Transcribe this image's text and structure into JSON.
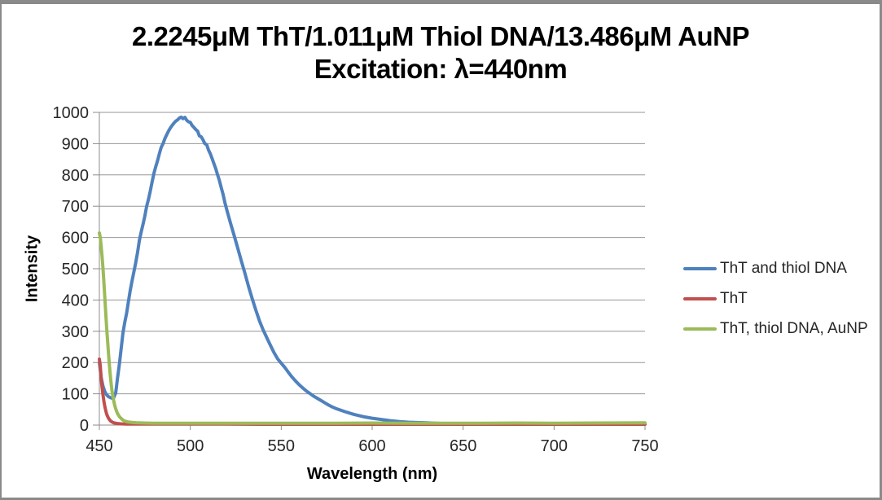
{
  "window": {
    "background": "#ffffff",
    "border_color": "#8a8a8a"
  },
  "title": {
    "line1": "2.2245μM ThT/1.011μM Thiol DNA/13.486μM AuNP",
    "line2": "Excitation: λ=440nm"
  },
  "chart_data": {
    "type": "line",
    "title": "2.2245μM ThT/1.011μM Thiol DNA/13.486μM AuNP Excitation: λ=440nm",
    "xlabel": "Wavelength (nm)",
    "ylabel": "Intensity",
    "xlim": [
      450,
      750
    ],
    "ylim": [
      0,
      1000
    ],
    "x_ticks": [
      450,
      500,
      550,
      600,
      650,
      700,
      750
    ],
    "y_ticks": [
      0,
      100,
      200,
      300,
      400,
      500,
      600,
      700,
      800,
      900,
      1000
    ],
    "grid": "horizontal",
    "legend_position": "right",
    "gridline_color": "#969696",
    "axis_color": "#8c8c8c",
    "tick_label_color": "#262626",
    "series": [
      {
        "name": "ThT and thiol DNA",
        "color": "#4F81BD",
        "peak": {
          "wavelength": 496,
          "intensity": 985
        },
        "points": [
          [
            450,
            200
          ],
          [
            451,
            152
          ],
          [
            452,
            124
          ],
          [
            453,
            107
          ],
          [
            454,
            97
          ],
          [
            455,
            91
          ],
          [
            456,
            88
          ],
          [
            457,
            86
          ],
          [
            458,
            89
          ],
          [
            459,
            103
          ],
          [
            460,
            150
          ],
          [
            461,
            195
          ],
          [
            462,
            245
          ],
          [
            463,
            295
          ],
          [
            464,
            330
          ],
          [
            465,
            358
          ],
          [
            466,
            395
          ],
          [
            467,
            432
          ],
          [
            468,
            462
          ],
          [
            469,
            490
          ],
          [
            470,
            520
          ],
          [
            471,
            552
          ],
          [
            472,
            590
          ],
          [
            473,
            618
          ],
          [
            474,
            642
          ],
          [
            475,
            668
          ],
          [
            476,
            700
          ],
          [
            477,
            722
          ],
          [
            478,
            748
          ],
          [
            479,
            778
          ],
          [
            480,
            805
          ],
          [
            481,
            826
          ],
          [
            482,
            846
          ],
          [
            483,
            868
          ],
          [
            484,
            888
          ],
          [
            485,
            900
          ],
          [
            486,
            916
          ],
          [
            487,
            928
          ],
          [
            488,
            940
          ],
          [
            489,
            950
          ],
          [
            490,
            958
          ],
          [
            491,
            966
          ],
          [
            492,
            972
          ],
          [
            493,
            976
          ],
          [
            494,
            982
          ],
          [
            495,
            985
          ],
          [
            496,
            980
          ],
          [
            497,
            984
          ],
          [
            498,
            975
          ],
          [
            499,
            970
          ],
          [
            500,
            968
          ],
          [
            501,
            958
          ],
          [
            502,
            952
          ],
          [
            503,
            945
          ],
          [
            504,
            940
          ],
          [
            505,
            925
          ],
          [
            506,
            922
          ],
          [
            507,
            912
          ],
          [
            508,
            900
          ],
          [
            509,
            897
          ],
          [
            510,
            880
          ],
          [
            511,
            868
          ],
          [
            512,
            852
          ],
          [
            513,
            836
          ],
          [
            514,
            820
          ],
          [
            515,
            800
          ],
          [
            516,
            782
          ],
          [
            517,
            760
          ],
          [
            518,
            738
          ],
          [
            519,
            712
          ],
          [
            520,
            690
          ],
          [
            522,
            648
          ],
          [
            524,
            608
          ],
          [
            526,
            568
          ],
          [
            528,
            526
          ],
          [
            530,
            486
          ],
          [
            532,
            444
          ],
          [
            534,
            405
          ],
          [
            536,
            368
          ],
          [
            538,
            334
          ],
          [
            540,
            305
          ],
          [
            542,
            280
          ],
          [
            544,
            256
          ],
          [
            546,
            232
          ],
          [
            548,
            212
          ],
          [
            550,
            198
          ],
          [
            552,
            184
          ],
          [
            554,
            168
          ],
          [
            556,
            153
          ],
          [
            558,
            140
          ],
          [
            560,
            128
          ],
          [
            562,
            118
          ],
          [
            564,
            108
          ],
          [
            566,
            100
          ],
          [
            568,
            92
          ],
          [
            570,
            85
          ],
          [
            572,
            78
          ],
          [
            574,
            71
          ],
          [
            576,
            64
          ],
          [
            578,
            58
          ],
          [
            580,
            53
          ],
          [
            585,
            43
          ],
          [
            590,
            34
          ],
          [
            595,
            27
          ],
          [
            600,
            22
          ],
          [
            605,
            18
          ],
          [
            610,
            14
          ],
          [
            615,
            11
          ],
          [
            620,
            9
          ],
          [
            625,
            8
          ],
          [
            630,
            7
          ],
          [
            635,
            6
          ],
          [
            640,
            5
          ],
          [
            645,
            4.5
          ],
          [
            650,
            4
          ],
          [
            660,
            3.5
          ],
          [
            670,
            3
          ],
          [
            680,
            3
          ],
          [
            690,
            3
          ],
          [
            700,
            3
          ],
          [
            710,
            3
          ],
          [
            720,
            3
          ],
          [
            730,
            3
          ],
          [
            740,
            3
          ],
          [
            750,
            3
          ]
        ]
      },
      {
        "name": "ThT",
        "color": "#C0504D",
        "peak": {
          "wavelength": 450,
          "intensity": 211
        },
        "points": [
          [
            450,
            211
          ],
          [
            450.5,
            190
          ],
          [
            451,
            150
          ],
          [
            451.5,
            122
          ],
          [
            452,
            96
          ],
          [
            452.5,
            76
          ],
          [
            453,
            60
          ],
          [
            453.5,
            47
          ],
          [
            454,
            36
          ],
          [
            454.5,
            28
          ],
          [
            455,
            22
          ],
          [
            455.5,
            18
          ],
          [
            456,
            14
          ],
          [
            457,
            10
          ],
          [
            458,
            7
          ],
          [
            459,
            6
          ],
          [
            460,
            5
          ],
          [
            462,
            4
          ],
          [
            465,
            3.5
          ],
          [
            470,
            3
          ],
          [
            480,
            3
          ],
          [
            490,
            3
          ],
          [
            500,
            3
          ],
          [
            520,
            3
          ],
          [
            540,
            2.5
          ],
          [
            560,
            2.5
          ],
          [
            580,
            2.5
          ],
          [
            600,
            2.5
          ],
          [
            620,
            2.5
          ],
          [
            640,
            2.5
          ],
          [
            660,
            2.5
          ],
          [
            680,
            2.5
          ],
          [
            700,
            2.5
          ],
          [
            720,
            2.5
          ],
          [
            750,
            2.5
          ]
        ]
      },
      {
        "name": "ThT, thiol DNA, AuNP",
        "color": "#9BBB59",
        "peak": {
          "wavelength": 450,
          "intensity": 614
        },
        "points": [
          [
            450,
            614
          ],
          [
            450.5,
            600
          ],
          [
            451,
            572
          ],
          [
            451.5,
            540
          ],
          [
            452,
            500
          ],
          [
            452.5,
            455
          ],
          [
            453,
            408
          ],
          [
            453.5,
            360
          ],
          [
            454,
            313
          ],
          [
            454.5,
            270
          ],
          [
            455,
            230
          ],
          [
            455.5,
            193
          ],
          [
            456,
            160
          ],
          [
            456.5,
            132
          ],
          [
            457,
            108
          ],
          [
            457.5,
            90
          ],
          [
            458,
            74
          ],
          [
            458.5,
            62
          ],
          [
            459,
            52
          ],
          [
            459.5,
            44
          ],
          [
            460,
            37
          ],
          [
            461,
            27
          ],
          [
            462,
            21
          ],
          [
            463,
            16
          ],
          [
            464,
            13
          ],
          [
            465,
            11
          ],
          [
            466,
            10
          ],
          [
            468,
            8.5
          ],
          [
            470,
            7.5
          ],
          [
            475,
            6.5
          ],
          [
            480,
            6
          ],
          [
            490,
            6
          ],
          [
            500,
            6
          ],
          [
            520,
            6
          ],
          [
            540,
            6
          ],
          [
            560,
            6
          ],
          [
            580,
            6
          ],
          [
            600,
            6.5
          ],
          [
            620,
            6
          ],
          [
            640,
            6
          ],
          [
            660,
            6
          ],
          [
            680,
            6.5
          ],
          [
            700,
            6
          ],
          [
            720,
            6.5
          ],
          [
            750,
            7
          ]
        ]
      }
    ]
  },
  "legend": {
    "items": [
      {
        "label": "ThT and thiol DNA",
        "color": "#4F81BD"
      },
      {
        "label": "ThT",
        "color": "#C0504D"
      },
      {
        "label": "ThT, thiol DNA, AuNP",
        "color": "#9BBB59"
      }
    ]
  }
}
